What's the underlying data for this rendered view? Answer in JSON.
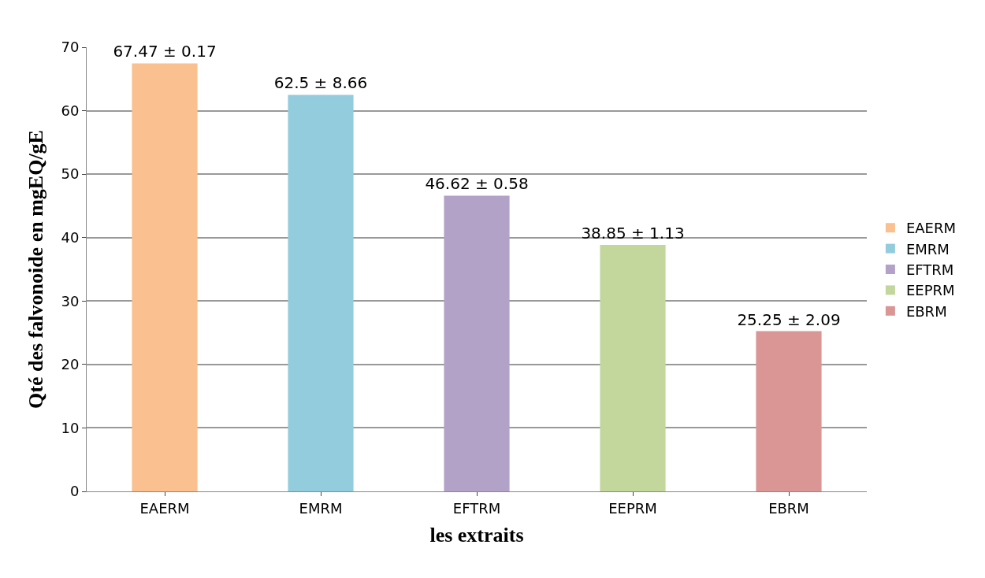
{
  "chart_data": {
    "type": "bar",
    "xlabel": "les extraits",
    "ylabel": "Qté des falvonoide en mgEQ/gE",
    "categories": [
      "EAERM",
      "EMRM",
      "EFTRM",
      "EEPRM",
      "EBRM"
    ],
    "series": [
      {
        "name": "EAERM",
        "color": "#fac090",
        "values": [
          67.47,
          null,
          null,
          null,
          null
        ],
        "value_labels": [
          "67.47 ± 0.17",
          null,
          null,
          null,
          null
        ]
      },
      {
        "name": "EMRM",
        "color": "#93cddd",
        "values": [
          null,
          62.5,
          null,
          null,
          null
        ],
        "value_labels": [
          null,
          "62.5 ± 8.66",
          null,
          null,
          null
        ]
      },
      {
        "name": "EFTRM",
        "color": "#b3a2c7",
        "values": [
          null,
          null,
          46.62,
          null,
          null
        ],
        "value_labels": [
          null,
          null,
          "46.62 ± 0.58",
          null,
          null
        ]
      },
      {
        "name": "EEPRM",
        "color": "#c3d69b",
        "values": [
          null,
          null,
          null,
          38.85,
          null
        ],
        "value_labels": [
          null,
          null,
          null,
          "38.85 ± 1.13",
          null
        ]
      },
      {
        "name": "EBRM",
        "color": "#d99694",
        "values": [
          null,
          null,
          null,
          null,
          25.25
        ],
        "value_labels": [
          null,
          null,
          null,
          null,
          "25.25 ± 2.09"
        ]
      }
    ],
    "ylim": [
      0,
      70
    ],
    "yticks": [
      0,
      10,
      20,
      30,
      40,
      50,
      60,
      70
    ],
    "grid": "y",
    "legend": "right"
  }
}
